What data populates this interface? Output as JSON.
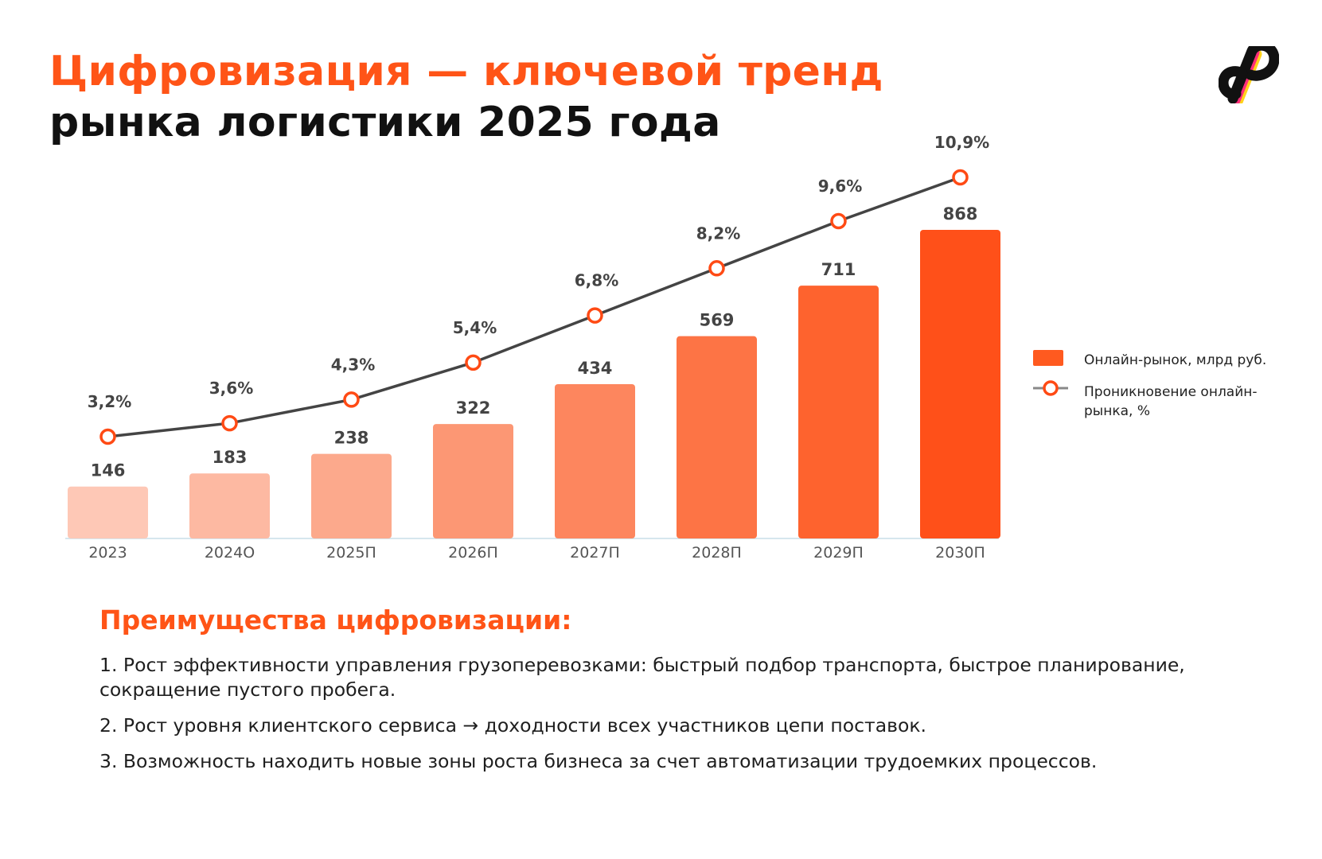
{
  "title": {
    "line1": "Цифровизация — ключевой тренд",
    "line2": "рынка логистики 2025 года"
  },
  "logo": {
    "icon": "brand-logo-icon",
    "colors": [
      "#111111",
      "#ff2d7a",
      "#ffd21a"
    ]
  },
  "chart_data": {
    "type": "bar",
    "categories": [
      "2023",
      "2024О",
      "2025П",
      "2026П",
      "2027П",
      "2028П",
      "2029П",
      "2030П"
    ],
    "series": [
      {
        "name": "Онлайн-рынок, млрд руб.",
        "type": "bar",
        "values": [
          146,
          183,
          238,
          322,
          434,
          569,
          711,
          868
        ],
        "labels": [
          "146",
          "183",
          "238",
          "322",
          "434",
          "569",
          "711",
          "868"
        ],
        "colors": [
          "#fec8b6",
          "#fdb9a2",
          "#fca98c",
          "#fc9774",
          "#fd865e",
          "#fd7445",
          "#fe632e",
          "#ff5019"
        ]
      },
      {
        "name": "Проникновение онлайн-рынка, %",
        "type": "line",
        "values": [
          3.2,
          3.6,
          4.3,
          5.4,
          6.8,
          8.2,
          9.6,
          10.9
        ],
        "labels": [
          "3,2%",
          "3,6%",
          "4,3%",
          "5,4%",
          "6,8%",
          "8,2%",
          "9,6%",
          "10,9%"
        ],
        "line_color": "#444444",
        "marker_color": "#ff4a14"
      }
    ],
    "legend": "right",
    "grid": false
  },
  "benefits": {
    "heading": "Преимущества цифровизации:",
    "items": [
      "1. Рост эффективности управления грузоперевозками: быстрый подбор транспорта, быстрое планирование, сокращение пустого пробега.",
      "2. Рост уровня клиентского сервиса → доходности всех участников цепи поставок.",
      "3. Возможность находить новые зоны роста бизнеса за счет автоматизации трудоемких процессов."
    ]
  }
}
